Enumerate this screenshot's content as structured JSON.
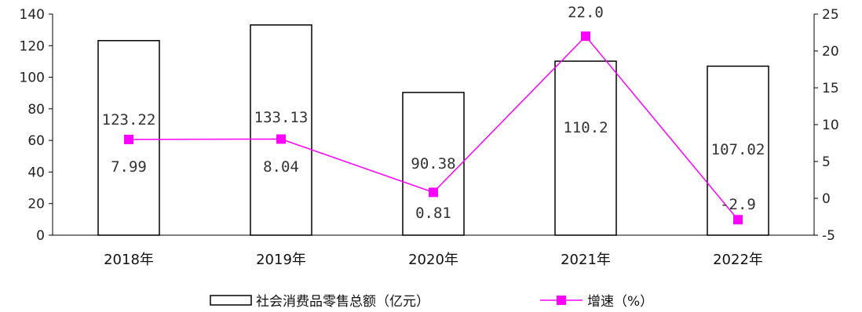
{
  "chart_data": {
    "type": "bar+line",
    "categories": [
      "2018年",
      "2019年",
      "2020年",
      "2021年",
      "2022年"
    ],
    "series": [
      {
        "name": "社会消费品零售总额（亿元）",
        "type": "bar",
        "axis": "left",
        "values": [
          123.22,
          133.13,
          90.38,
          110.2,
          107.02
        ],
        "labels": [
          "123.22",
          "133.13",
          "90.38",
          "110.2",
          "107.02"
        ]
      },
      {
        "name": "增速（%）",
        "type": "line",
        "axis": "right",
        "values": [
          7.99,
          8.04,
          0.81,
          22.0,
          -2.9
        ],
        "labels": [
          "7.99",
          "8.04",
          "0.81",
          "22.0",
          "-2.9"
        ],
        "color": "#ff00ff"
      }
    ],
    "y_left": {
      "min": 0,
      "max": 140,
      "ticks": [
        "0",
        "20",
        "40",
        "60",
        "80",
        "100",
        "120",
        "140"
      ]
    },
    "y_right": {
      "min": -5,
      "max": 25,
      "ticks": [
        "-5",
        "0",
        "5",
        "10",
        "15",
        "20",
        "25"
      ]
    },
    "legend_position": "bottom-center",
    "grid": false,
    "bar_style": {
      "fill": "#ffffff",
      "stroke": "#000000"
    }
  }
}
